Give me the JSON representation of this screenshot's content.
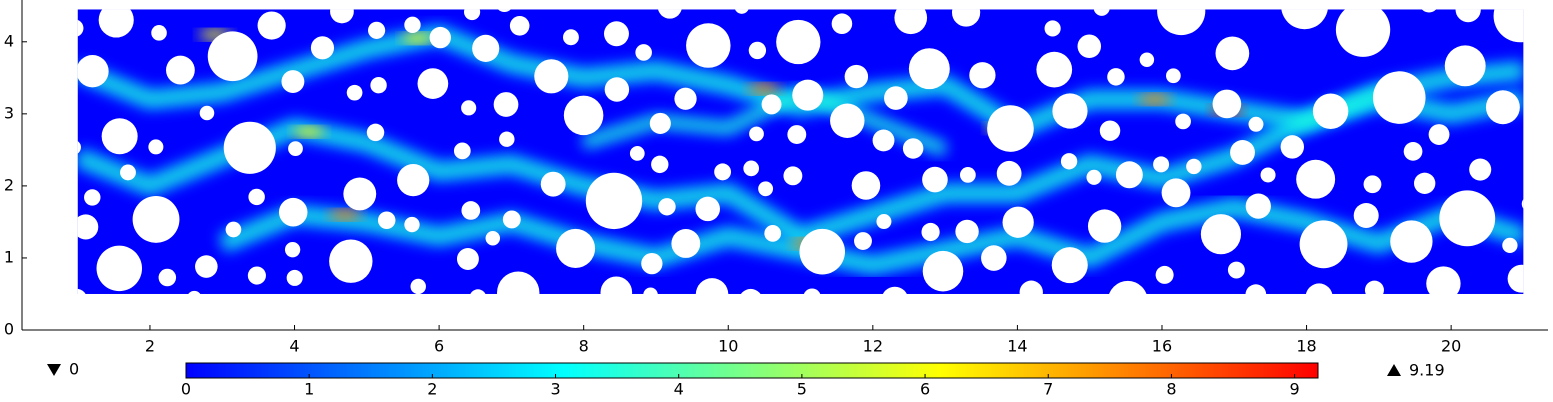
{
  "chart_data": {
    "type": "heatmap",
    "xlim": [
      0.23,
      21.34
    ],
    "ylim": [
      0,
      4.58
    ],
    "xticks": [
      2,
      4,
      6,
      8,
      10,
      12,
      14,
      16,
      18,
      20
    ],
    "yticks": [
      0,
      1,
      2,
      3,
      4
    ],
    "extent": {
      "x": [
        1,
        21
      ],
      "y": [
        0.5,
        4.45
      ]
    },
    "colorbar": {
      "lim": [
        0,
        9.19
      ],
      "ticks": [
        0,
        1,
        2,
        3,
        4,
        5,
        6,
        7,
        8,
        9
      ],
      "colors": [
        "#0000ff",
        "#0080ff",
        "#00ffff",
        "#80ff80",
        "#ffff00",
        "#ff8000",
        "#ff0000"
      ]
    },
    "min_value": 0,
    "max_value": 9.19
  }
}
